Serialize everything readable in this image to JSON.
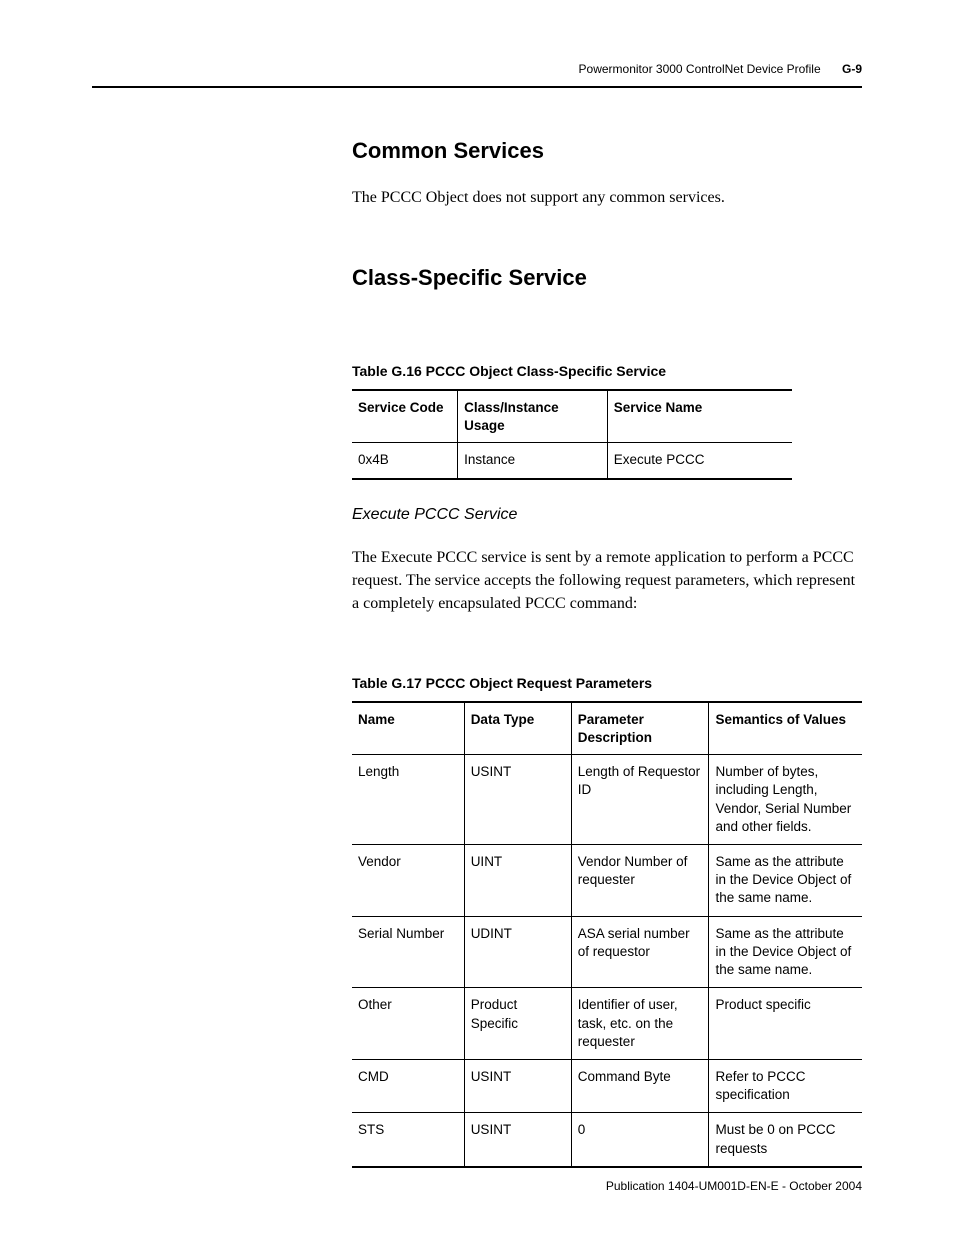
{
  "header": {
    "title": "Powermonitor 3000 ControlNet Device Profile",
    "page": "G-9"
  },
  "section1": {
    "heading": "Common Services",
    "body": "The PCCC Object does not support any common services."
  },
  "section2": {
    "heading": "Class-Specific Service"
  },
  "table1": {
    "caption": "Table G.16 PCCC Object Class-Specific Service",
    "headers": [
      "Service Code",
      "Class/Instance Usage",
      "Service Name"
    ],
    "rows": [
      [
        "0x4B",
        "Instance",
        "Execute PCCC"
      ]
    ]
  },
  "sub": {
    "title": "Execute PCCC Service",
    "body": "The Execute PCCC service is sent by a remote application to perform a PCCC request. The service accepts the following request parameters, which represent a completely encapsulated PCCC command:"
  },
  "table2": {
    "caption": "Table G.17 PCCC Object Request Parameters",
    "headers": [
      "Name",
      "Data Type",
      "Parameter Description",
      "Semantics of Values"
    ],
    "rows": [
      [
        "Length",
        "USINT",
        "Length of Requestor ID",
        "Number of bytes, including Length, Vendor, Serial Number and other fields."
      ],
      [
        "Vendor",
        "UINT",
        "Vendor Number of requester",
        "Same as the attribute in the Device Object of the same name."
      ],
      [
        "Serial Number",
        "UDINT",
        "ASA serial number of requestor",
        "Same as the attribute in the Device Object of the same name."
      ],
      [
        "Other",
        "Product Specific",
        "Identifier of user, task, etc. on the requester",
        "Product specific"
      ],
      [
        "CMD",
        "USINT",
        "Command Byte",
        "Refer to PCCC specification"
      ],
      [
        "STS",
        "USINT",
        "0",
        "Must be 0 on PCCC requests"
      ]
    ]
  },
  "footer": {
    "text": "Publication 1404-UM001D-EN-E - October 2004"
  }
}
